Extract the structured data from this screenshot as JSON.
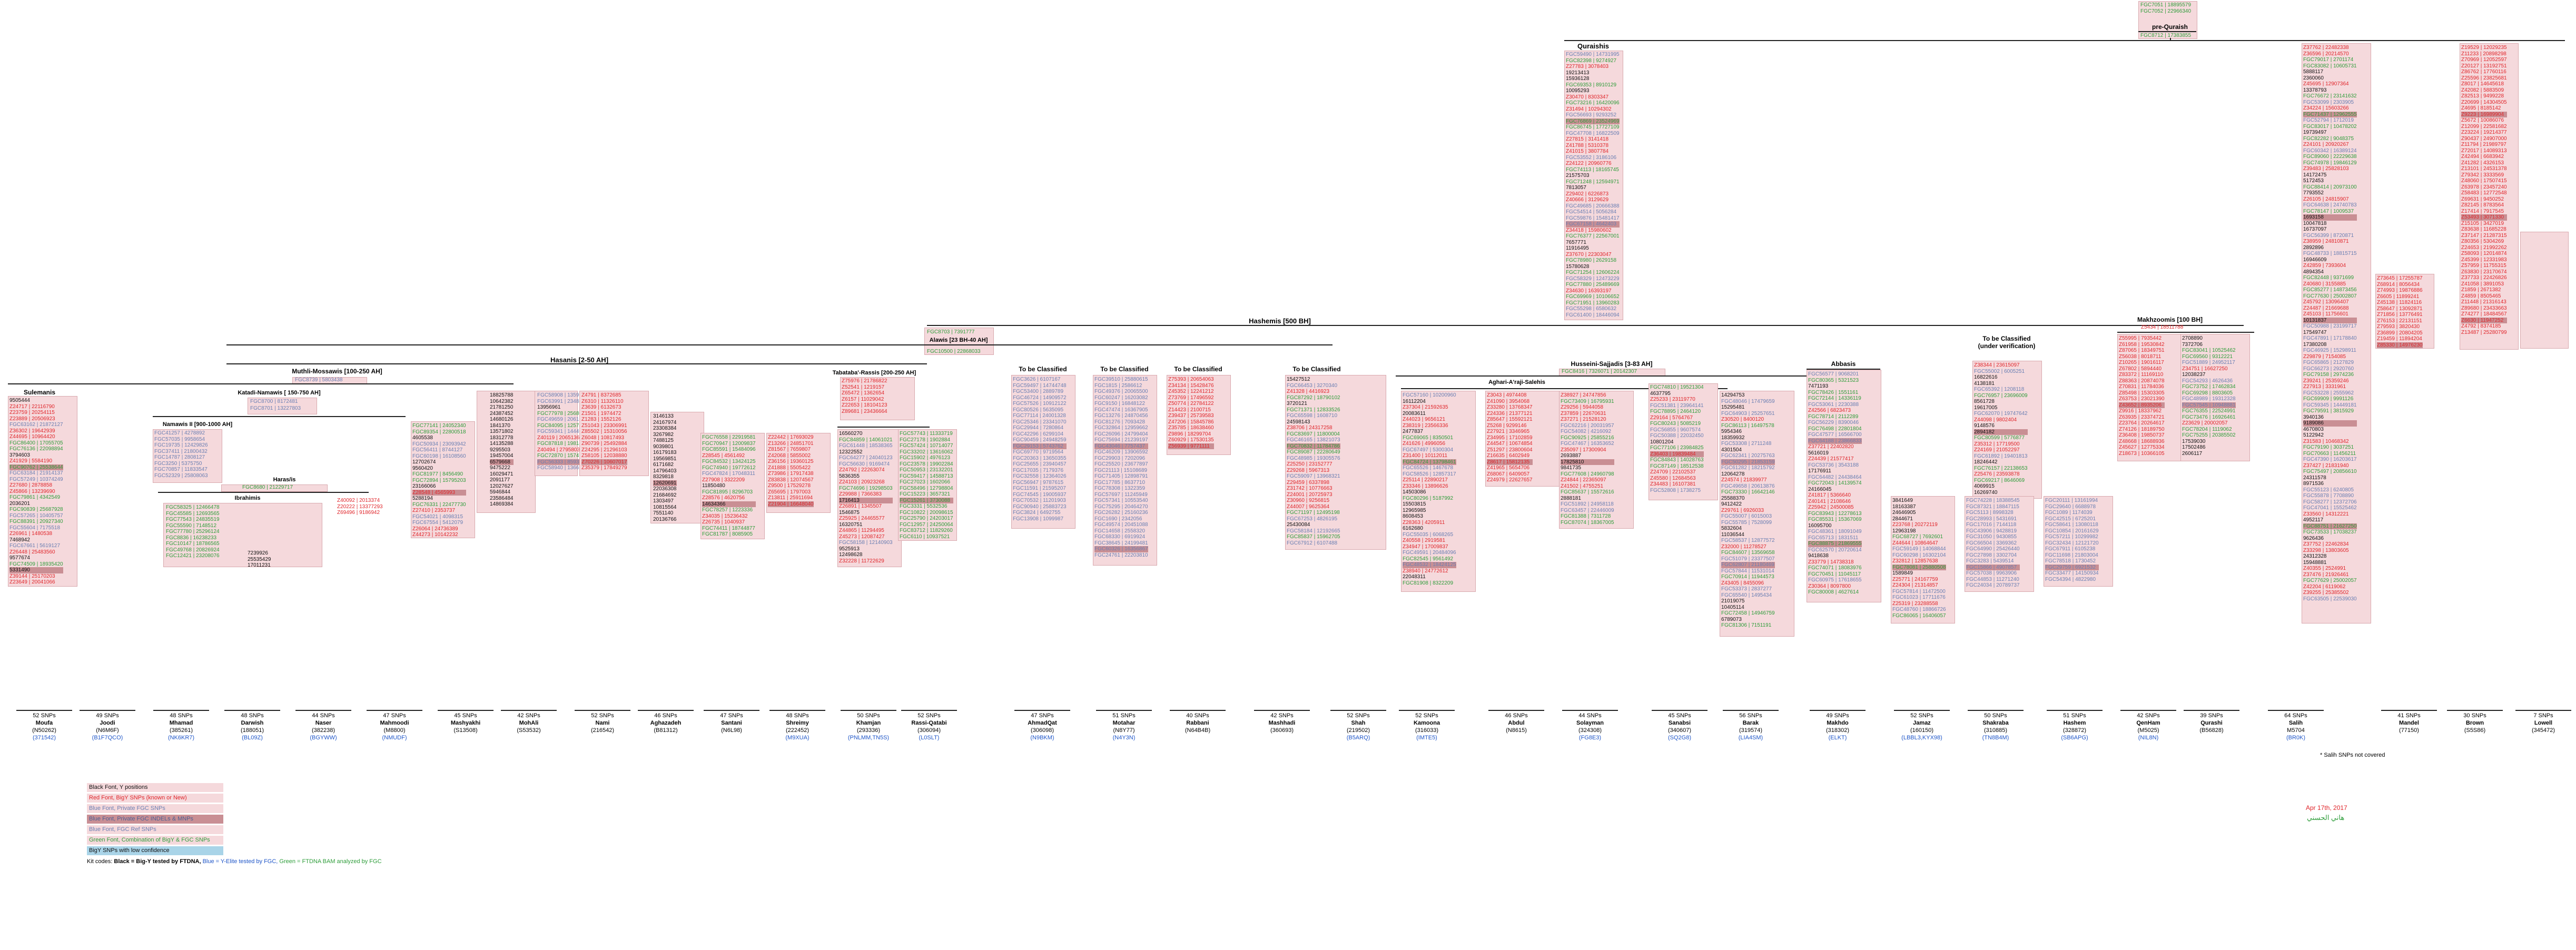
{
  "top_box": {
    "snp1": "FGC7051 | 18895579",
    "snp2": "FGC7052 | 22966340",
    "title": "pre-Quraish",
    "snp3": "FGC8712 | 17383855"
  },
  "clades": {
    "quraish": "Quraishis",
    "hashemi": "Hashemis [500 BH]",
    "alawis": "Alawis [23 BH-40 AH]",
    "alawis_snp": "FGC8703 | 7391777",
    "alawis_snp2": "FGC10500 | 22868033",
    "hasanis": "Hasanis [2-50 AH]",
    "muthli": "Muthli-Mossawis [100-250 AH]",
    "muthli_snp": "FGC8739 | 5803438",
    "katadi": "Katadi-Namawis [ 150-750 AH]",
    "katadi_snp": "FGC8700 | 8172481",
    "katadi_snp2": "FGC8701 | 13227803",
    "namawis": "Namawis II [900-1000 AH]",
    "haras": "Haras/is",
    "haras_snp": "FGC8680 | 21229717",
    "ibrahimi": "Ibrahimis",
    "sulemanis": "Sulemanis",
    "tabatabai": "Tabataba'-Rassis [200-250 AH]",
    "husseini": "Husseini-Sajjadis [3-83 AH]",
    "husseini_snp": "FGC8416 | 7326071 | 20142307",
    "aghari": "Aghari-A'raji-Salehis",
    "abbasis": "Abbasis",
    "makhzoomi": "Makhzoomis [100 BH]",
    "makhzoomi_snp": "Z5434 | 18511788",
    "tbc": "To be Classified",
    "tbc_uv": "To be Classified (under verification)"
  },
  "families": [
    {
      "snps": "52 SNPs",
      "name": "Moufa",
      "code": "(N50262)",
      "kit": "(371542)"
    },
    {
      "snps": "49 SNPs",
      "name": "Joodi",
      "code": "(N6M6F)",
      "kit": "(B1F7QCO)"
    },
    {
      "snps": "48 SNPs",
      "name": "Mhamad",
      "code": "(385261)",
      "kit": "(NK6KR7)"
    },
    {
      "snps": "48 SNPs",
      "name": "Darwish",
      "code": "(188051)",
      "kit": "(BL09Z)"
    },
    {
      "snps": "44 SNPs",
      "name": "Naser",
      "code": "(382238)",
      "kit": "(BGYWW)"
    },
    {
      "snps": "47 SNPs",
      "name": "Mahmoodi",
      "code": "(M8800)",
      "kit": "(NMUDF)"
    },
    {
      "snps": "45 SNPs",
      "name": "Mashyakhi",
      "code": "(S13508)",
      "kit": ""
    },
    {
      "snps": "42 SNPs",
      "name": "MohAli",
      "code": "(S53532)",
      "kit": ""
    },
    {
      "snps": "52 SNPs",
      "name": "Nami",
      "code": "(216542)",
      "kit": ""
    },
    {
      "snps": "46 SNPs",
      "name": "Aghazadeh",
      "code": "(B81312)",
      "kit": ""
    },
    {
      "snps": "47 SNPs",
      "name": "Santani",
      "code": "(N6L98)",
      "kit": ""
    },
    {
      "snps": "48 SNPs",
      "name": "Shreimy",
      "code": "(222452)",
      "kit": "(M9XUA)"
    },
    {
      "snps": "50 SNPs",
      "name": "Khamjan",
      "code": "(293336)",
      "kit": "(PNLMM,TN5S)"
    },
    {
      "snps": "52 SNPs",
      "name": "Rassi-Qatabi",
      "code": "(306094)",
      "kit": "(L0SLT)"
    },
    {
      "snps": "47 SNPs",
      "name": "AhmadQat",
      "code": "(306098)",
      "kit": "(N9BKM)"
    },
    {
      "snps": "51 SNPs",
      "name": "Motahar",
      "code": "(N8Y77)",
      "kit": "(N4Y3N)"
    },
    {
      "snps": "40 SNPs",
      "name": "Rabbani",
      "code": "(N64B4B)",
      "kit": ""
    },
    {
      "snps": "42 SNPs",
      "name": "Mashhadi",
      "code": "(360693)",
      "kit": ""
    },
    {
      "snps": "52 SNPs",
      "name": "Shah",
      "code": "(219502)",
      "kit": "(B5ARQ)"
    },
    {
      "snps": "52 SNPs",
      "name": "Kamoona",
      "code": "(316033)",
      "kit": "(IMTE5)"
    },
    {
      "snps": "46 SNPs",
      "name": "Abdul",
      "code": "(N8615)",
      "kit": ""
    },
    {
      "snps": "44 SNPs",
      "name": "Solayman",
      "code": "(324308)",
      "kit": "(FG8E3)"
    },
    {
      "snps": "45 SNPs",
      "name": "Sanabsi",
      "code": "(340607)",
      "kit": "(SQ2G8)"
    },
    {
      "snps": "56 SNPs",
      "name": "Barak",
      "code": "(319574)",
      "kit": "(LIA4SM)"
    },
    {
      "snps": "49 SNPs",
      "name": "Makhdo",
      "code": "(318302)",
      "kit": "(ELKT)"
    },
    {
      "snps": "52 SNPs",
      "name": "Jamaz",
      "code": "(160150)",
      "kit": "(LBBL3,KYX98)"
    },
    {
      "snps": "50 SNPs",
      "name": "Shakraba",
      "code": "(310885)",
      "kit": "(TN8B4M)"
    },
    {
      "snps": "51 SNPs",
      "name": "Hashem",
      "code": "(328872)",
      "kit": "(SB6APG)"
    },
    {
      "snps": "42 SNPs",
      "name": "QenHam",
      "code": "(M5025)",
      "kit": "(NIL8N)"
    },
    {
      "snps": "39 SNPs",
      "name": "Qurashi",
      "code": "(B56828)",
      "kit": ""
    },
    {
      "snps": "64 SNPs",
      "name": "Salih",
      "code": "M5704",
      "kit": "(BR0K)"
    },
    {
      "snps": "41 SNPs",
      "name": "Mandel",
      "code": "(77150)",
      "kit": ""
    },
    {
      "snps": "30 SNPs",
      "name": "Brown",
      "code": "(S5S86)",
      "kit": ""
    },
    {
      "snps": "7 SNPs",
      "name": "Lowell",
      "code": "(345472)",
      "kit": ""
    }
  ],
  "legend": [
    {
      "text": "Black Font, Y positions",
      "bg": "#f5d9dc",
      "color": "#111111"
    },
    {
      "text": "Red Font, BigY SNPs (known or New)",
      "bg": "#f5d9dc",
      "color": "#e0262b"
    },
    {
      "text": "Blue Font, Private FGC SNPs",
      "bg": "#f5d9dc",
      "color": "#6a7fb3"
    },
    {
      "text": "Blue Font, Private FGC INDELs & MNPs",
      "bg": "#c98f94",
      "color": "#4a5f93"
    },
    {
      "text": "Blue Font, FGC Ref SNPs",
      "bg": "#f5d9dc",
      "color": "#6a7fb3"
    },
    {
      "text": "Green Font, Combination of BigY & FGC SNPs",
      "bg": "#f5d9dc",
      "color": "#2e9d3a"
    },
    {
      "text": "BigY SNPs with low confidence",
      "bg": "#a9d4e8",
      "color": "#111111"
    }
  ],
  "kit_codes": {
    "prefix": "Kit codes:",
    "black": "Black = Big-Y tested by FTDNA,",
    "blue": "Blue = Y-Elite tested by FGC,",
    "green": "Green = FTDNA BAM analyzed by FGC"
  },
  "footnote": "* Salih SNPs not covered",
  "date": "Apr 17th, 2017",
  "signature": "هاني الحسني",
  "colors": {
    "accent_red": "#e0262b",
    "box_bg": "#f5d9dc",
    "dark_bg": "#c98f94",
    "light_blue": "#a9d4e8"
  }
}
